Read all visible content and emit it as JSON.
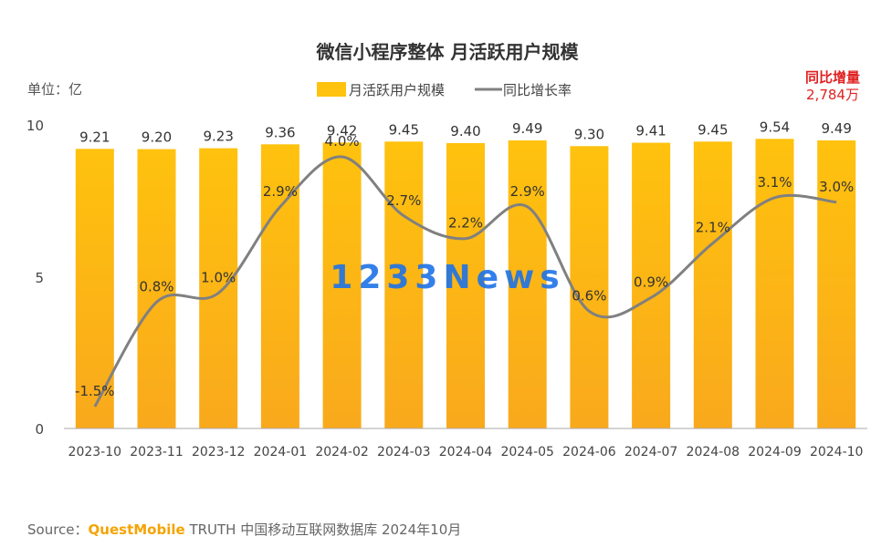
{
  "chart_data": {
    "type": "bar",
    "title": "微信小程序整体 月活跃用户规模",
    "unit_label": "单位：亿",
    "categories": [
      "2023-10",
      "2023-11",
      "2023-12",
      "2024-01",
      "2024-02",
      "2024-03",
      "2024-04",
      "2024-05",
      "2024-06",
      "2024-07",
      "2024-08",
      "2024-09",
      "2024-10"
    ],
    "series": [
      {
        "name": "月活跃用户规模",
        "type": "bar",
        "values": [
          9.21,
          9.2,
          9.23,
          9.36,
          9.42,
          9.45,
          9.4,
          9.49,
          9.3,
          9.41,
          9.45,
          9.54,
          9.49
        ],
        "labels": [
          "9.21",
          "9.20",
          "9.23",
          "9.36",
          "9.42",
          "9.45",
          "9.40",
          "9.49",
          "9.30",
          "9.41",
          "9.45",
          "9.54",
          "9.49"
        ],
        "color": "#ffc20e"
      },
      {
        "name": "同比增长率",
        "type": "line",
        "values": [
          -1.5,
          0.8,
          1.0,
          2.9,
          4.0,
          2.7,
          2.2,
          2.9,
          0.6,
          0.9,
          2.1,
          3.1,
          3.0
        ],
        "labels": [
          "-1.5%",
          "0.8%",
          "1.0%",
          "2.9%",
          "4.0%",
          "2.7%",
          "2.2%",
          "2.9%",
          "0.6%",
          "0.9%",
          "2.1%",
          "3.1%",
          "3.0%"
        ],
        "color": "#808080"
      }
    ],
    "y_ticks": [
      "0",
      "5",
      "10"
    ],
    "ylim": [
      0,
      10
    ],
    "legend_position": "top-center",
    "callout": {
      "line1": "同比增量",
      "line2": "2,784万",
      "color": "#e02020"
    },
    "watermark": "1233News"
  },
  "source": {
    "prefix": "Source：",
    "brand": "QuestMobile",
    "rest": " TRUTH 中国移动互联网数据库 2024年10月"
  }
}
